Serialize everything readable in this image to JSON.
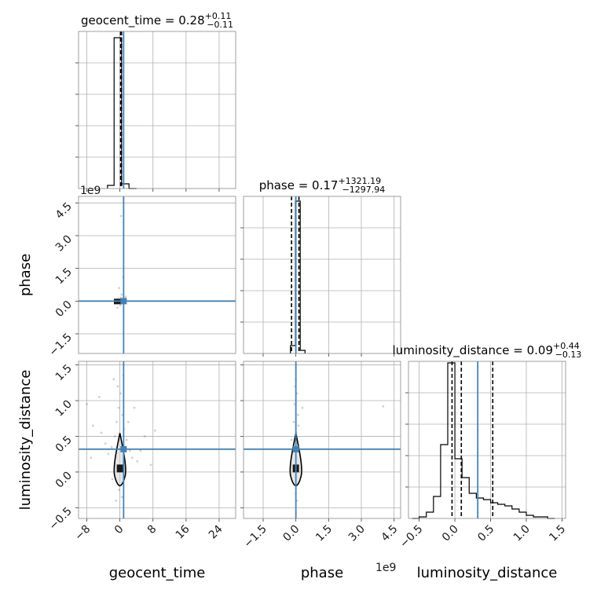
{
  "chart_data": [
    {
      "type": "histogram",
      "panel": "geocent_time-1d",
      "title": "geocent_time = 0.28",
      "title_sup": "+0.11",
      "title_sub": "−0.11",
      "xlim": [
        -10,
        28
      ],
      "x_ticks": [
        "−8",
        "0",
        "8",
        "16",
        "24"
      ],
      "x_tick_values": [
        -8,
        0,
        8,
        16,
        24
      ],
      "bins": [
        -3,
        -1.4,
        0.4,
        2.2,
        4
      ],
      "counts": [
        0.02,
        0.96,
        0.03,
        0
      ],
      "quantiles": [
        0.17,
        0.28,
        0.39
      ],
      "truth": 0.9
    },
    {
      "type": "scatter",
      "panel": "phase-vs-geocent_time",
      "xlim": [
        -10,
        28
      ],
      "ylim": [
        -2.4,
        4.8
      ],
      "y_ticks": [
        "−1.5",
        "0.0",
        "1.5",
        "3.0",
        "4.5"
      ],
      "y_tick_values": [
        -1.5,
        0,
        1.5,
        3.0,
        4.5
      ],
      "y_offset_label": "1e9",
      "ylabel": "phase",
      "truth": [
        0.9,
        0.0
      ],
      "points": [
        [
          -0.5,
          0.1
        ],
        [
          -0.3,
          -0.05
        ],
        [
          0.2,
          0.15
        ],
        [
          0.6,
          0.05
        ],
        [
          1.0,
          -0.1
        ],
        [
          0.4,
          0.3
        ],
        [
          -0.2,
          0.6
        ],
        [
          0.8,
          1.1
        ],
        [
          0.3,
          3.9
        ],
        [
          -0.6,
          -0.3
        ],
        [
          1.4,
          0.2
        ],
        [
          0.1,
          -0.2
        ]
      ]
    },
    {
      "type": "histogram",
      "panel": "phase-1d",
      "title": "phase = 0.17",
      "title_sup": "+1321.19",
      "title_sub": "−1297.94",
      "xlim": [
        -2.4,
        4.8
      ],
      "x_ticks": [
        "−1.5",
        "0.0",
        "1.5",
        "3.0",
        "4.5"
      ],
      "x_tick_values": [
        -1.5,
        0,
        1.5,
        3.0,
        4.5
      ],
      "x_offset_label": "1e9",
      "bins": [
        -0.25,
        -0.02,
        0.2,
        0.42
      ],
      "counts": [
        0.05,
        0.97,
        0.02
      ],
      "quantiles": [
        -0.2,
        0.0,
        0.14
      ],
      "truth": 0.0
    },
    {
      "type": "scatter",
      "panel": "luminosity_distance-vs-geocent_time",
      "xlim": [
        -10,
        28
      ],
      "ylim": [
        -0.65,
        1.55
      ],
      "x_ticks": [
        "−8",
        "0",
        "8",
        "16",
        "24"
      ],
      "x_tick_values": [
        -8,
        0,
        8,
        16,
        24
      ],
      "y_ticks": [
        "−0.5",
        "0.0",
        "0.5",
        "1.0",
        "1.5"
      ],
      "y_tick_values": [
        -0.5,
        0,
        0.5,
        1.0,
        1.5
      ],
      "xlabel": "geocent_time",
      "ylabel": "luminosity_distance",
      "truth": [
        0.9,
        0.32
      ],
      "contour_center": [
        0,
        0.05
      ],
      "points": [
        [
          -0.5,
          1.2
        ],
        [
          0.2,
          1.1
        ],
        [
          -0.3,
          0.9
        ],
        [
          0.6,
          0.8
        ],
        [
          -0.8,
          0.7
        ],
        [
          1.0,
          0.6
        ],
        [
          -1.2,
          0.5
        ],
        [
          1.6,
          0.45
        ],
        [
          -2.0,
          0.35
        ],
        [
          2.4,
          0.3
        ],
        [
          -2.8,
          0.25
        ],
        [
          3.0,
          0.2
        ],
        [
          -4.5,
          0.55
        ],
        [
          4.2,
          0.15
        ],
        [
          -6.5,
          0.65
        ],
        [
          6.0,
          0.5
        ],
        [
          -8.0,
          0.95
        ],
        [
          8.5,
          0.58
        ],
        [
          -5.0,
          1.05
        ],
        [
          3.5,
          0.9
        ],
        [
          -1.5,
          1.3
        ],
        [
          0.8,
          1.35
        ],
        [
          -3.5,
          0.4
        ],
        [
          2.0,
          0.7
        ],
        [
          -0.2,
          -0.25
        ],
        [
          0.5,
          -0.35
        ],
        [
          -0.9,
          -0.4
        ],
        [
          1.3,
          0.05
        ],
        [
          -1.8,
          -0.1
        ],
        [
          5.0,
          0.3
        ],
        [
          -7.0,
          0.2
        ],
        [
          7.5,
          0.1
        ]
      ]
    },
    {
      "type": "scatter",
      "panel": "luminosity_distance-vs-phase",
      "xlim": [
        -2.4,
        4.8
      ],
      "ylim": [
        -0.65,
        1.55
      ],
      "x_ticks": [
        "−1.5",
        "0.0",
        "1.5",
        "3.0",
        "4.5"
      ],
      "x_tick_values": [
        -1.5,
        0,
        1.5,
        3.0,
        4.5
      ],
      "x_offset_label": "1e9",
      "y_ticks": [
        "−0.5",
        "0.0",
        "0.5",
        "1.0",
        "1.5"
      ],
      "y_tick_values": [
        -0.5,
        0,
        0.5,
        1.0,
        1.5
      ],
      "xlabel": "phase",
      "truth": [
        0.0,
        0.32
      ],
      "contour_center": [
        0,
        0.05
      ],
      "points": [
        [
          0.0,
          1.3
        ],
        [
          0.05,
          1.1
        ],
        [
          -0.05,
          0.95
        ],
        [
          0.1,
          0.8
        ],
        [
          -0.1,
          0.7
        ],
        [
          0.02,
          0.55
        ],
        [
          0.08,
          0.4
        ],
        [
          -0.06,
          0.3
        ],
        [
          0.0,
          -0.3
        ],
        [
          0.04,
          -0.4
        ],
        [
          -0.03,
          1.2
        ],
        [
          0.12,
          0.65
        ],
        [
          4.0,
          0.92
        ],
        [
          0.3,
          0.9
        ],
        [
          -0.2,
          0.45
        ]
      ]
    },
    {
      "type": "histogram",
      "panel": "luminosity_distance-1d",
      "title": "luminosity_distance = 0.09",
      "title_sup": "+0.44",
      "title_sub": "−0.13",
      "xlim": [
        -0.65,
        1.55
      ],
      "x_ticks": [
        "−0.5",
        "0.0",
        "0.5",
        "1.0",
        "1.5"
      ],
      "x_tick_values": [
        -0.5,
        0,
        0.5,
        1.0,
        1.5
      ],
      "xlabel": "luminosity_distance",
      "bins": [
        -0.6,
        -0.5,
        -0.4,
        -0.3,
        -0.2,
        -0.1,
        0.0,
        0.1,
        0.2,
        0.3,
        0.4,
        0.5,
        0.6,
        0.7,
        0.8,
        0.9,
        1.0,
        1.1,
        1.2,
        1.3,
        1.4
      ],
      "counts": [
        0.0,
        0.01,
        0.04,
        0.14,
        0.47,
        0.99,
        0.38,
        0.26,
        0.16,
        0.13,
        0.12,
        0.1,
        0.09,
        0.08,
        0.06,
        0.04,
        0.02,
        0.01,
        0.01,
        0.0
      ],
      "quantiles": [
        -0.04,
        0.09,
        0.53
      ],
      "truth": 0.32
    }
  ],
  "colors": {
    "truth": "#4682b4",
    "hist": "#000000",
    "grid": "#b0b0b0",
    "scatter": "#7a7a7a"
  }
}
